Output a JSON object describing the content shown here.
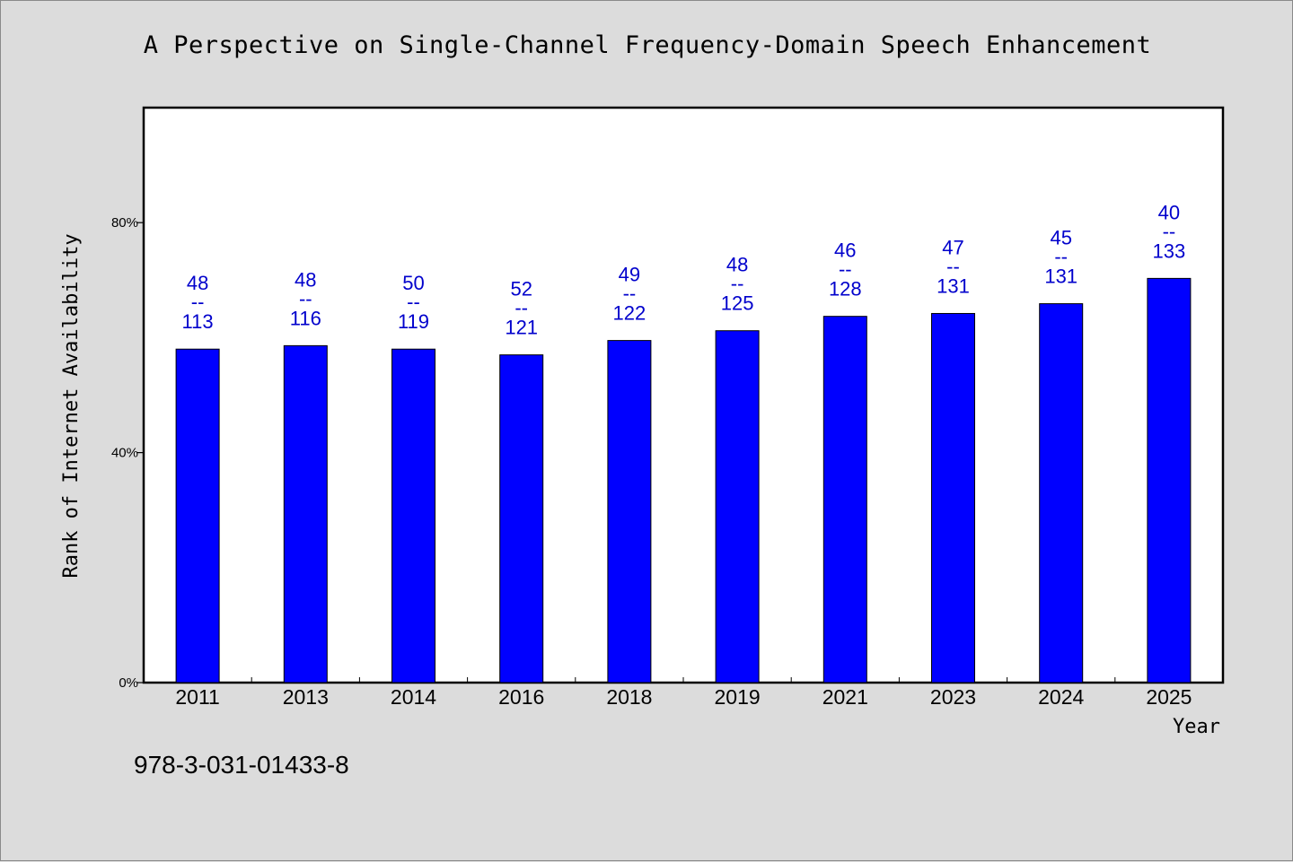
{
  "chart_data": {
    "type": "bar",
    "title": "A Perspective on Single-Channel Frequency-Domain Speech Enhancement",
    "xlabel": "Year",
    "ylabel": "Rank of Internet Availability",
    "categories": [
      "2011",
      "2013",
      "2014",
      "2016",
      "2018",
      "2019",
      "2021",
      "2023",
      "2024",
      "2025"
    ],
    "values": [
      58.0,
      58.6,
      58.0,
      57.0,
      59.5,
      61.2,
      63.7,
      64.2,
      65.9,
      70.3
    ],
    "value_unit": "%",
    "data_labels": [
      {
        "top": "48",
        "sep": "--",
        "bottom": "113"
      },
      {
        "top": "48",
        "sep": "--",
        "bottom": "116"
      },
      {
        "top": "50",
        "sep": "--",
        "bottom": "119"
      },
      {
        "top": "52",
        "sep": "--",
        "bottom": "121"
      },
      {
        "top": "49",
        "sep": "--",
        "bottom": "122"
      },
      {
        "top": "48",
        "sep": "--",
        "bottom": "125"
      },
      {
        "top": "46",
        "sep": "--",
        "bottom": "128"
      },
      {
        "top": "47",
        "sep": "--",
        "bottom": "131"
      },
      {
        "top": "45",
        "sep": "--",
        "bottom": "131"
      },
      {
        "top": "40",
        "sep": "--",
        "bottom": "133"
      }
    ],
    "ylim": [
      0,
      100
    ],
    "yticks": [
      0,
      40,
      80
    ],
    "ytick_labels": [
      "0%",
      "40%",
      "80%"
    ],
    "grid": false,
    "bar_color": "#0000ff",
    "label_color": "#0000cc"
  },
  "footer": {
    "isbn": "978-3-031-01433-8"
  }
}
